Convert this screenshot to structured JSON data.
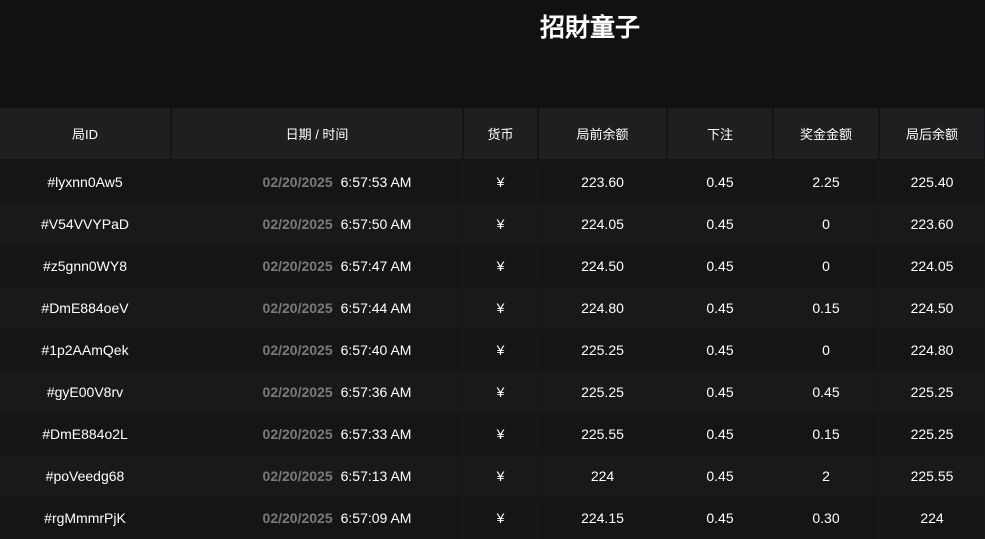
{
  "title": "招財童子",
  "columns": [
    "局ID",
    "日期 / 时间",
    "货币",
    "局前余额",
    "下注",
    "奖金金额",
    "局后余额"
  ],
  "rows": [
    [
      "#lyxnn0Aw5",
      "02/20/2025",
      "6:57:53 AM",
      "¥",
      "223.60",
      "0.45",
      "2.25",
      "225.40"
    ],
    [
      "#V54VVYPaD",
      "02/20/2025",
      "6:57:50 AM",
      "¥",
      "224.05",
      "0.45",
      "0",
      "223.60"
    ],
    [
      "#z5gnn0WY8",
      "02/20/2025",
      "6:57:47 AM",
      "¥",
      "224.50",
      "0.45",
      "0",
      "224.05"
    ],
    [
      "#DmE884oeV",
      "02/20/2025",
      "6:57:44 AM",
      "¥",
      "224.80",
      "0.45",
      "0.15",
      "224.50"
    ],
    [
      "#1p2AAmQek",
      "02/20/2025",
      "6:57:40 AM",
      "¥",
      "225.25",
      "0.45",
      "0",
      "224.80"
    ],
    [
      "#gyE00V8rv",
      "02/20/2025",
      "6:57:36 AM",
      "¥",
      "225.25",
      "0.45",
      "0.45",
      "225.25"
    ],
    [
      "#DmE884o2L",
      "02/20/2025",
      "6:57:33 AM",
      "¥",
      "225.55",
      "0.45",
      "0.15",
      "225.25"
    ],
    [
      "#poVeedg68",
      "02/20/2025",
      "6:57:13 AM",
      "¥",
      "224",
      "0.45",
      "2",
      "225.55"
    ],
    [
      "#rgMmmrPjK",
      "02/20/2025",
      "6:57:09 AM",
      "¥",
      "224.15",
      "0.45",
      "0.30",
      "224"
    ]
  ]
}
